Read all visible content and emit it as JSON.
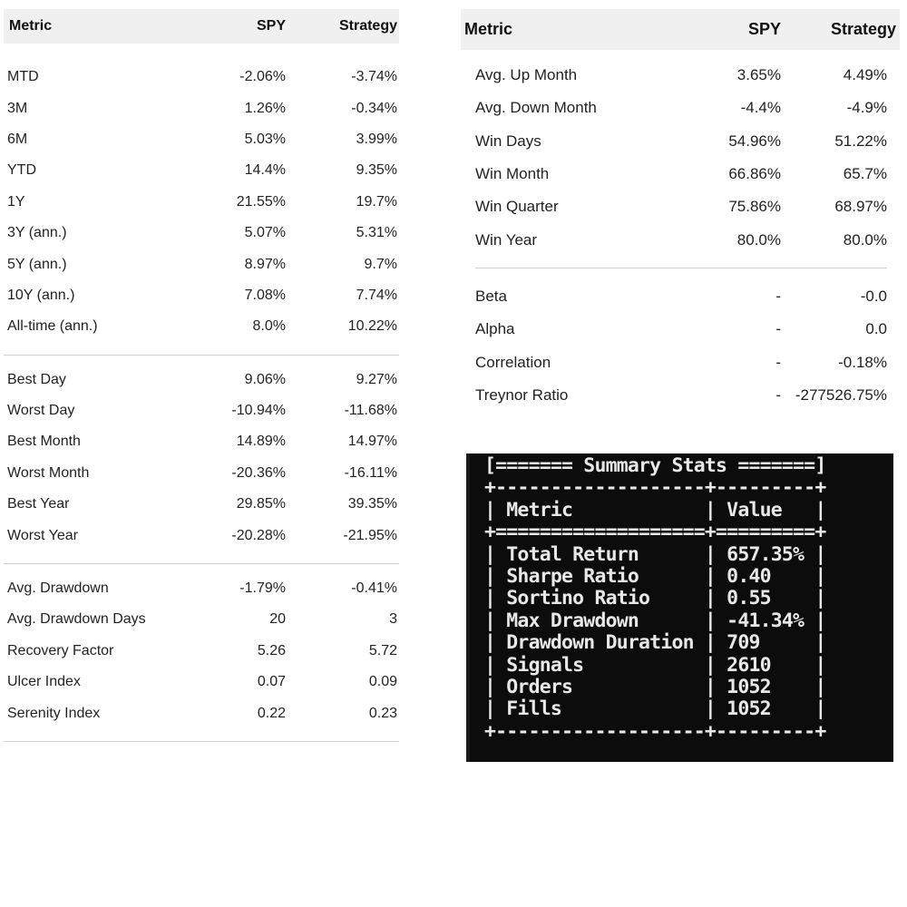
{
  "left_table": {
    "headers": [
      "Metric",
      "SPY",
      "Strategy"
    ],
    "groups": [
      [
        [
          "MTD",
          "-2.06%",
          "-3.74%"
        ],
        [
          "3M",
          "1.26%",
          "-0.34%"
        ],
        [
          "6M",
          "5.03%",
          "3.99%"
        ],
        [
          "YTD",
          "14.4%",
          "9.35%"
        ],
        [
          "1Y",
          "21.55%",
          "19.7%"
        ],
        [
          "3Y (ann.)",
          "5.07%",
          "5.31%"
        ],
        [
          "5Y (ann.)",
          "8.97%",
          "9.7%"
        ],
        [
          "10Y (ann.)",
          "7.08%",
          "7.74%"
        ],
        [
          "All-time (ann.)",
          "8.0%",
          "10.22%"
        ]
      ],
      [
        [
          "Best Day",
          "9.06%",
          "9.27%"
        ],
        [
          "Worst Day",
          "-10.94%",
          "-11.68%"
        ],
        [
          "Best Month",
          "14.89%",
          "14.97%"
        ],
        [
          "Worst Month",
          "-20.36%",
          "-16.11%"
        ],
        [
          "Best Year",
          "29.85%",
          "39.35%"
        ],
        [
          "Worst Year",
          "-20.28%",
          "-21.95%"
        ]
      ],
      [
        [
          "Avg. Drawdown",
          "-1.79%",
          "-0.41%"
        ],
        [
          "Avg. Drawdown Days",
          "20",
          "3"
        ],
        [
          "Recovery Factor",
          "5.26",
          "5.72"
        ],
        [
          "Ulcer Index",
          "0.07",
          "0.09"
        ],
        [
          "Serenity Index",
          "0.22",
          "0.23"
        ]
      ]
    ]
  },
  "right_table": {
    "headers": [
      "Metric",
      "SPY",
      "Strategy"
    ],
    "groups": [
      [
        [
          "Avg. Up Month",
          "3.65%",
          "4.49%"
        ],
        [
          "Avg. Down Month",
          "-4.4%",
          "-4.9%"
        ],
        [
          "Win Days",
          "54.96%",
          "51.22%"
        ],
        [
          "Win Month",
          "66.86%",
          "65.7%"
        ],
        [
          "Win Quarter",
          "75.86%",
          "68.97%"
        ],
        [
          "Win Year",
          "80.0%",
          "80.0%"
        ]
      ],
      [
        [
          "Beta",
          "-",
          "-0.0"
        ],
        [
          "Alpha",
          "-",
          "0.0"
        ],
        [
          "Correlation",
          "-",
          "-0.18%"
        ],
        [
          "Treynor Ratio",
          "-",
          "-277526.75%"
        ]
      ]
    ]
  },
  "terminal": {
    "title": "Summary Stats",
    "headers": [
      "Metric",
      "Value"
    ],
    "rows": [
      [
        "Total Return",
        "657.35%"
      ],
      [
        "Sharpe Ratio",
        "0.40"
      ],
      [
        "Sortino Ratio",
        "0.55"
      ],
      [
        "Max Drawdown",
        "-41.34%"
      ],
      [
        "Drawdown Duration",
        "709"
      ],
      [
        "Signals",
        "2610"
      ],
      [
        "Orders",
        "1052"
      ],
      [
        "Fills",
        "1052"
      ]
    ]
  }
}
